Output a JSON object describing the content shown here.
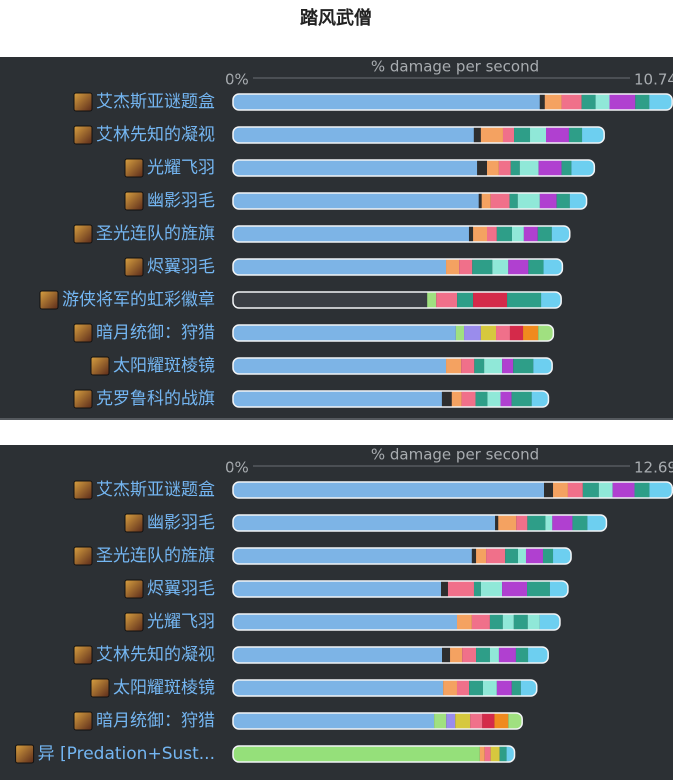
{
  "title": "踏风武僧",
  "chart_data": [
    {
      "type": "bar",
      "orientation": "horizontal",
      "stacked": true,
      "xlabel": "% damage per second",
      "xlim": [
        0,
        10.74
      ],
      "xticks": [
        {
          "value": 0,
          "label": "0%"
        },
        10.74
      ],
      "categories": [
        "艾杰斯亚谜题盒",
        "艾林先知的凝视",
        "光耀飞羽",
        "幽影羽毛",
        "圣光连队的旌旗",
        "烬翼羽毛",
        "游侠将军的虹彩徽章",
        "暗月统御：狩猎",
        "太阳耀斑棱镜",
        "克罗鲁科的战旗"
      ],
      "segments": [
        [
          7.49,
          0.12,
          0.41,
          0.49,
          0.34,
          0.34,
          0.63,
          0.34,
          0.56
        ],
        [
          5.88,
          0.17,
          0.54,
          0.27,
          0.39,
          0.39,
          0.56,
          0.32,
          0.54
        ],
        [
          5.96,
          0.24,
          0.29,
          0.29,
          0.22,
          0.46,
          0.56,
          0.24,
          0.56
        ],
        [
          6.0,
          0.07,
          0.22,
          0.46,
          0.2,
          0.54,
          0.41,
          0.32,
          0.41
        ],
        [
          5.76,
          0.1,
          0.34,
          0.24,
          0.37,
          0.29,
          0.34,
          0.34,
          0.44
        ],
        [
          5.2,
          0.32,
          0.32,
          0.49,
          0.39,
          0.49,
          0.37,
          0.46
        ],
        [
          4.74,
          0.22,
          0.51,
          0.39,
          0.83,
          0.83,
          0.49
        ],
        [
          5.44,
          0.2,
          0.41,
          0.37,
          0.34,
          0.32,
          0.37,
          0.37
        ],
        [
          5.2,
          0.37,
          0.32,
          0.24,
          0.44,
          0.27,
          0.49,
          0.46
        ],
        [
          5.1,
          0.24,
          0.24,
          0.34,
          0.29,
          0.32,
          0.27,
          0.49,
          0.41
        ]
      ],
      "colors": [
        [
          "#7db4e6",
          "#2e2e2e",
          "#f4a261",
          "#f0708a",
          "#2e9e88",
          "#90e8d8",
          "#b040d0",
          "#2e9e88",
          "#6dcff0"
        ],
        [
          "#7db4e6",
          "#2e2e2e",
          "#f4a261",
          "#f0708a",
          "#2e9e88",
          "#90e8d8",
          "#b040d0",
          "#2e9e88",
          "#6dcff0"
        ],
        [
          "#7db4e6",
          "#2e2e2e",
          "#f4a261",
          "#f0708a",
          "#2e9e88",
          "#90e8d8",
          "#b040d0",
          "#2e9e88",
          "#6dcff0"
        ],
        [
          "#7db4e6",
          "#2e2e2e",
          "#f4a261",
          "#f0708a",
          "#2e9e88",
          "#90e8d8",
          "#b040d0",
          "#2e9e88",
          "#6dcff0"
        ],
        [
          "#7db4e6",
          "#2e2e2e",
          "#f4a261",
          "#f0708a",
          "#2e9e88",
          "#90e8d8",
          "#b040d0",
          "#2e9e88",
          "#6dcff0"
        ],
        [
          "#7db4e6",
          "#f4a261",
          "#f0708a",
          "#2e9e88",
          "#90e8d8",
          "#b040d0",
          "#2e9e88",
          "#6dcff0"
        ],
        [
          "#3a3e44",
          "#a0e080",
          "#f0708a",
          "#2e9e88",
          "#d42a4a",
          "#2e9e88",
          "#6dcff0"
        ],
        [
          "#7db4e6",
          "#a0e080",
          "#9a8cec",
          "#d6c83e",
          "#f0708a",
          "#d42a4a",
          "#f08a1e",
          "#a0e080"
        ],
        [
          "#7db4e6",
          "#f4a261",
          "#f0708a",
          "#2e9e88",
          "#90e8d8",
          "#b040d0",
          "#2e9e88",
          "#6dcff0"
        ],
        [
          "#7db4e6",
          "#2e2e2e",
          "#f4a261",
          "#f0708a",
          "#2e9e88",
          "#90e8d8",
          "#b040d0",
          "#2e9e88",
          "#6dcff0"
        ]
      ]
    },
    {
      "type": "bar",
      "orientation": "horizontal",
      "stacked": true,
      "xlabel": "% damage per second",
      "xlim": [
        0,
        12.69
      ],
      "xticks": [
        {
          "value": 0,
          "label": "0%"
        },
        12.69
      ],
      "categories": [
        "艾杰斯亚谜题盒",
        "幽影羽毛",
        "圣光连队的旌旗",
        "烬翼羽毛",
        "光耀飞羽",
        "艾林先知的凝视",
        "太阳耀斑棱镜",
        "暗月统御：狩猎",
        "异 [Predation+Sust..."
      ],
      "segments": [
        [
          8.97,
          0.26,
          0.43,
          0.43,
          0.46,
          0.4,
          0.63,
          0.43,
          0.66
        ],
        [
          7.56,
          0.09,
          0.52,
          0.32,
          0.52,
          0.2,
          0.58,
          0.43,
          0.55
        ],
        [
          6.89,
          0.12,
          0.29,
          0.55,
          0.37,
          0.23,
          0.49,
          0.29,
          0.52
        ],
        [
          6.0,
          0.2,
          0.75,
          0.2,
          0.61,
          0.72,
          0.66,
          0.52
        ],
        [
          6.46,
          0.43,
          0.52,
          0.37,
          0.32,
          0.4,
          0.35,
          0.58
        ],
        [
          6.03,
          0.23,
          0.35,
          0.4,
          0.4,
          0.26,
          0.49,
          0.35,
          0.58
        ],
        [
          6.06,
          0.4,
          0.35,
          0.4,
          0.4,
          0.43,
          0.26,
          0.46
        ],
        [
          5.8,
          0.35,
          0.26,
          0.43,
          0.35,
          0.35,
          0.4,
          0.4
        ],
        [
          7.12,
          0.14,
          0.17,
          0.26,
          0.2,
          0.23
        ]
      ],
      "colors": [
        [
          "#7db4e6",
          "#2e2e2e",
          "#f4a261",
          "#f0708a",
          "#2e9e88",
          "#90e8d8",
          "#b040d0",
          "#2e9e88",
          "#6dcff0"
        ],
        [
          "#7db4e6",
          "#2e2e2e",
          "#f4a261",
          "#f0708a",
          "#2e9e88",
          "#90e8d8",
          "#b040d0",
          "#2e9e88",
          "#6dcff0"
        ],
        [
          "#7db4e6",
          "#2e2e2e",
          "#f4a261",
          "#f0708a",
          "#2e9e88",
          "#90e8d8",
          "#b040d0",
          "#2e9e88",
          "#6dcff0"
        ],
        [
          "#7db4e6",
          "#2e2e2e",
          "#f0708a",
          "#2e9e88",
          "#90e8d8",
          "#b040d0",
          "#2e9e88",
          "#6dcff0"
        ],
        [
          "#7db4e6",
          "#f4a261",
          "#f0708a",
          "#2e9e88",
          "#90e8d8",
          "#2e9e88",
          "#90e8d8",
          "#6dcff0"
        ],
        [
          "#7db4e6",
          "#2e2e2e",
          "#f4a261",
          "#f0708a",
          "#2e9e88",
          "#90e8d8",
          "#b040d0",
          "#2e9e88",
          "#6dcff0"
        ],
        [
          "#7db4e6",
          "#f4a261",
          "#f0708a",
          "#2e9e88",
          "#90e8d8",
          "#b040d0",
          "#2e9e88",
          "#6dcff0"
        ],
        [
          "#7db4e6",
          "#a0e080",
          "#9a8cec",
          "#d6c83e",
          "#f0708a",
          "#d42a4a",
          "#f08a1e",
          "#a0e080"
        ],
        [
          "#95e07a",
          "#f4a261",
          "#f0708a",
          "#d6c83e",
          "#2e9e88",
          "#6dcff0"
        ]
      ]
    }
  ]
}
